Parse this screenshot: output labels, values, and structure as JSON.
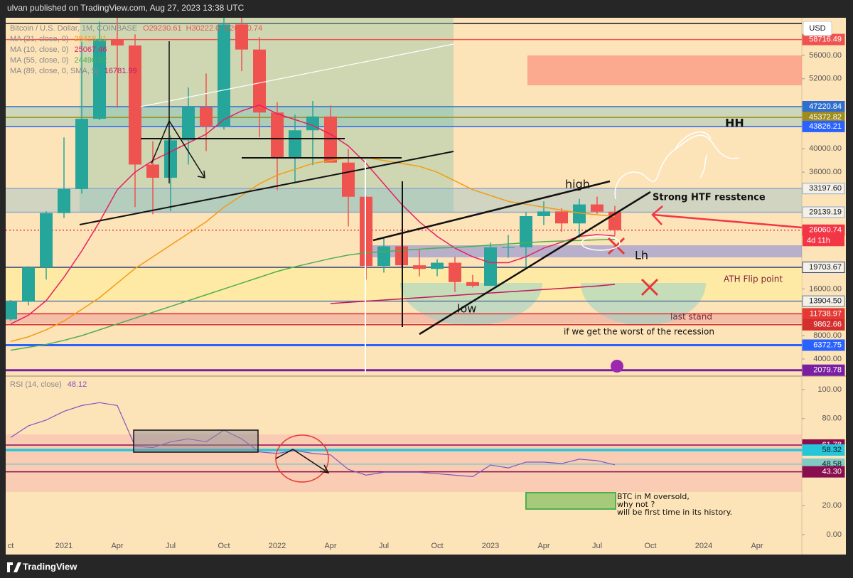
{
  "header": {
    "text": "ulvan published on TradingView.com, Aug 27, 2023 13:38 UTC"
  },
  "footer": {
    "brand": "TradingView"
  },
  "chart_data": [
    {
      "type": "candlestick",
      "title": "Bitcoin / U.S. Dollar, 1M, COINBASE",
      "ohlc_text": [
        "O29230.61",
        "H30222.0",
        "C26060.74"
      ],
      "currency": "USD",
      "countdown": "4d 11h",
      "up_color": "#26a69a",
      "down_color": "#ef5350",
      "categories": [
        "ct",
        null,
        null,
        "2021",
        null,
        null,
        "Apr",
        null,
        null,
        "Jul",
        null,
        null,
        "Oct",
        null,
        null,
        "2022",
        null,
        null,
        "Apr",
        null,
        null,
        "Jul",
        null,
        null,
        "Oct",
        null,
        null,
        "2023",
        null,
        null,
        "Apr",
        null,
        null,
        "Jul",
        null,
        null,
        "Oct",
        null,
        null,
        "2024",
        null,
        null,
        "Apr"
      ],
      "open": [
        10780,
        13800,
        19700,
        28990,
        33110,
        45140,
        58790,
        57700,
        37300,
        35040,
        41460,
        47130,
        43820,
        61300,
        57000,
        46210,
        38480,
        43170,
        45530,
        37640,
        31790,
        19940,
        23300,
        20050,
        19430,
        20490,
        17170,
        16540,
        23130,
        23140,
        28470,
        29270,
        27220,
        30470,
        29230.61,
        null,
        null,
        null,
        null,
        null,
        null,
        null,
        null
      ],
      "high": [
        14100,
        19900,
        29300,
        41950,
        58350,
        61790,
        64900,
        59600,
        41300,
        42300,
        50500,
        52900,
        67000,
        69000,
        59100,
        47990,
        45850,
        48200,
        47440,
        40000,
        31900,
        24700,
        25200,
        22800,
        21100,
        21480,
        18400,
        23950,
        25250,
        29200,
        31000,
        29820,
        31430,
        31800,
        30222,
        null,
        null,
        null,
        null,
        null,
        null,
        null,
        null
      ],
      "low": [
        10550,
        13200,
        17600,
        28130,
        32300,
        44900,
        47000,
        30000,
        28800,
        29300,
        37300,
        39600,
        43300,
        53300,
        42000,
        32930,
        34300,
        37200,
        37700,
        26700,
        17600,
        18800,
        19600,
        18150,
        18200,
        15480,
        16260,
        16500,
        21350,
        19550,
        26940,
        25800,
        24750,
        28860,
        25166,
        null,
        null,
        null,
        null,
        null,
        null,
        null,
        null
      ],
      "close": [
        13800,
        19700,
        28990,
        33110,
        45140,
        58790,
        57700,
        37300,
        35040,
        41460,
        47130,
        43820,
        61300,
        57000,
        46210,
        38480,
        43170,
        45530,
        37640,
        31790,
        19940,
        23300,
        20050,
        19430,
        20490,
        17170,
        16540,
        23130,
        23140,
        28470,
        29270,
        27220,
        30470,
        29230,
        26060.74,
        null,
        null,
        null,
        null,
        null,
        null,
        null,
        null
      ],
      "series": [
        {
          "name": "MA (21, close, 0)",
          "color": "#f39c12",
          "values": [
            7000,
            7800,
            9000,
            10500,
            12500,
            14500,
            17000,
            19500,
            21500,
            23500,
            25500,
            27500,
            30000,
            32000,
            34000,
            35500,
            36500,
            37500,
            38000,
            38500,
            38500,
            38000,
            37500,
            37000,
            36000,
            34500,
            33000,
            32000,
            31000,
            30500,
            30000,
            29500,
            29000,
            28700,
            28418.21,
            null,
            null,
            null,
            null,
            null,
            null,
            null,
            null
          ]
        },
        {
          "name": "MA (10, close, 0)",
          "color": "#e91e63",
          "values": [
            10000,
            11500,
            14000,
            18000,
            22500,
            27500,
            33000,
            36000,
            38000,
            39500,
            41000,
            42500,
            45000,
            46500,
            47500,
            46000,
            45000,
            44000,
            42500,
            40500,
            37500,
            34000,
            30500,
            27500,
            25000,
            23000,
            21500,
            20500,
            20500,
            21500,
            23000,
            24000,
            25000,
            25300,
            25067.46,
            null,
            null,
            null,
            null,
            null,
            null,
            null,
            null
          ]
        },
        {
          "name": "MA (55, close, 0)",
          "color": "#4caf50",
          "values": [
            5500,
            6000,
            6500,
            7200,
            8000,
            9000,
            10000,
            11000,
            12000,
            13000,
            14000,
            15000,
            16000,
            17000,
            18000,
            19000,
            19800,
            20500,
            21200,
            21800,
            22200,
            22400,
            22600,
            22800,
            23000,
            23100,
            23300,
            23500,
            23700,
            23900,
            24100,
            24200,
            24300,
            24400,
            24490.92,
            null,
            null,
            null,
            null,
            null,
            null,
            null,
            null
          ]
        },
        {
          "name": "MA (89, close, 0, SMA, 5)",
          "color": "#c2185b",
          "values": [
            null,
            null,
            null,
            null,
            null,
            null,
            null,
            null,
            null,
            null,
            null,
            null,
            null,
            null,
            null,
            null,
            null,
            null,
            13500,
            13700,
            13900,
            14100,
            14300,
            14500,
            14700,
            14900,
            15100,
            15300,
            15500,
            15700,
            15900,
            16100,
            16300,
            16500,
            16781.99,
            null,
            null,
            null,
            null,
            null,
            null,
            null,
            null
          ]
        }
      ],
      "ylim": [
        1560,
        62440
      ],
      "yticks": [
        {
          "value": 4000,
          "label": "4000.00"
        },
        {
          "value": 8000,
          "label": "8000.00"
        },
        {
          "value": 16000,
          "label": "16000.00"
        },
        {
          "value": 36000,
          "label": "36000.00"
        },
        {
          "value": 40000,
          "label": "40000.00"
        },
        {
          "value": 52000,
          "label": "52000.00"
        },
        {
          "value": 56000,
          "label": "56000.00"
        }
      ],
      "price_levels": [
        {
          "value": 58716.49,
          "color": "#ef5350",
          "text_color": "#ffffff"
        },
        {
          "value": 47220.84,
          "color": "#2f6fd0",
          "text_color": "#ffffff"
        },
        {
          "value": 45372.82,
          "color": "#a08c1c",
          "text_color": "#ffffff"
        },
        {
          "value": 43826.21,
          "color": "#2962ff",
          "text_color": "#ffffff"
        },
        {
          "value": 33197.6,
          "label": "33197.60",
          "color": "#8fa9cc",
          "text_color": "#131722"
        },
        {
          "value": 29139.19,
          "color": "#8fa9cc",
          "text_color": "#131722"
        },
        {
          "value": 26060.74,
          "color": "#f23645",
          "text_color": "#ffffff",
          "dashed": true
        },
        {
          "value": 19703.67,
          "color": "#2a3f7a",
          "text_color": "#131722"
        },
        {
          "value": 13904.5,
          "label": "13904.50",
          "color": "#607d9b",
          "text_color": "#131722"
        },
        {
          "value": 11738.97,
          "color": "#e53935",
          "text_color": "#ffffff"
        },
        {
          "value": 9862.66,
          "color": "#d32f2f",
          "text_color": "#ffffff"
        },
        {
          "value": 6372.75,
          "color": "#2962ff",
          "text_color": "#ffffff"
        },
        {
          "value": 2079.78,
          "color": "#7b1fa2",
          "text_color": "#ffffff"
        }
      ],
      "annotations": [
        "HH",
        "high",
        "Strong HTF resstence",
        "Lh",
        "ATH Flip point",
        "low",
        "last stand",
        "if we get the worst of the recession"
      ]
    },
    {
      "type": "line",
      "series": [
        {
          "name": "RSI (14, close)",
          "color": "#7e57c2",
          "values": [
            67,
            75,
            79,
            85,
            89,
            91,
            89,
            61,
            60,
            64,
            66,
            64,
            72,
            66,
            57,
            56,
            58,
            56,
            55,
            45,
            41,
            43,
            43,
            43,
            42,
            41,
            40,
            48,
            46,
            50,
            50,
            49,
            52,
            51,
            48.12
          ]
        }
      ],
      "ylim": [
        -3.9,
        108.3
      ],
      "yticks": [
        {
          "value": 0,
          "label": "0.00"
        },
        {
          "value": 20,
          "label": "20.00"
        },
        {
          "value": 80,
          "label": "80.00"
        },
        {
          "value": 100,
          "label": "100.00"
        }
      ],
      "price_levels": [
        {
          "value": 61.78,
          "color": "#880e4f",
          "text_color": "#ffffff"
        },
        {
          "value": 58.32,
          "color": "#26c6da",
          "text_color": "#131722",
          "thick": true
        },
        {
          "value": 48.58,
          "color": "#80cbc4",
          "text_color": "#131722"
        },
        {
          "value": 43.3,
          "label": "43.30",
          "color": "#880e4f",
          "text_color": "#ffffff"
        }
      ],
      "annotations": [
        "BTC in M oversold,",
        "why not ?",
        " will be first time in its history."
      ]
    }
  ]
}
